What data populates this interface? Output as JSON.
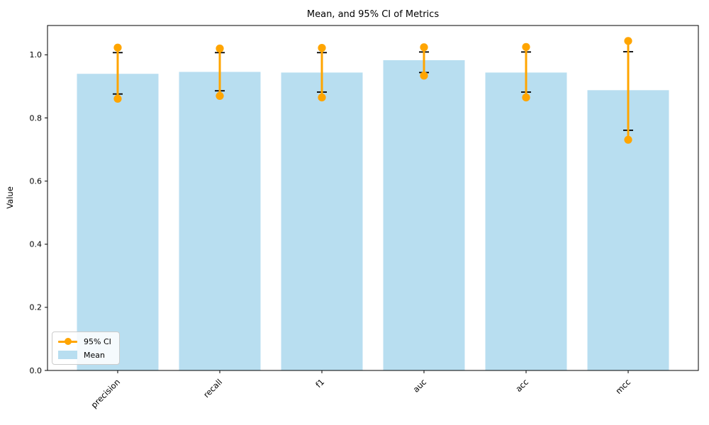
{
  "figure": {
    "title": "Mean, and 95% CI of Metrics",
    "ylabel": "Value"
  },
  "legend": {
    "position": "lower left",
    "items": [
      {
        "label": "95% CI",
        "type": "line-marker",
        "color": "#FFA500"
      },
      {
        "label": "Mean",
        "type": "patch",
        "color": "#B8DEF0"
      }
    ]
  },
  "chart_data": {
    "type": "bar",
    "title": "Mean, and 95% CI of Metrics",
    "xlabel": "",
    "ylabel": "Value",
    "categories": [
      "precision",
      "recall",
      "f1",
      "auc",
      "acc",
      "mcc"
    ],
    "series": [
      {
        "name": "Mean",
        "role": "bar",
        "color": "#B8DEF0",
        "values": [
          0.94,
          0.946,
          0.944,
          0.983,
          0.944,
          0.888
        ]
      },
      {
        "name": "95% CI",
        "role": "errorbar-dots",
        "color": "#FFA500",
        "low": [
          0.861,
          0.87,
          0.865,
          0.934,
          0.865,
          0.731
        ],
        "high": [
          1.023,
          1.02,
          1.022,
          1.024,
          1.025,
          1.044
        ]
      }
    ],
    "error_caps": {
      "color": "#000000",
      "low": [
        0.876,
        0.886,
        0.882,
        0.944,
        0.882,
        0.761
      ],
      "high": [
        1.007,
        1.007,
        1.007,
        1.009,
        1.009,
        1.01
      ]
    },
    "yticks": [
      0.0,
      0.2,
      0.4,
      0.6,
      0.8,
      1.0
    ],
    "ylim": [
      0.0,
      1.093
    ],
    "grid": false,
    "legend_position": "lower left"
  }
}
